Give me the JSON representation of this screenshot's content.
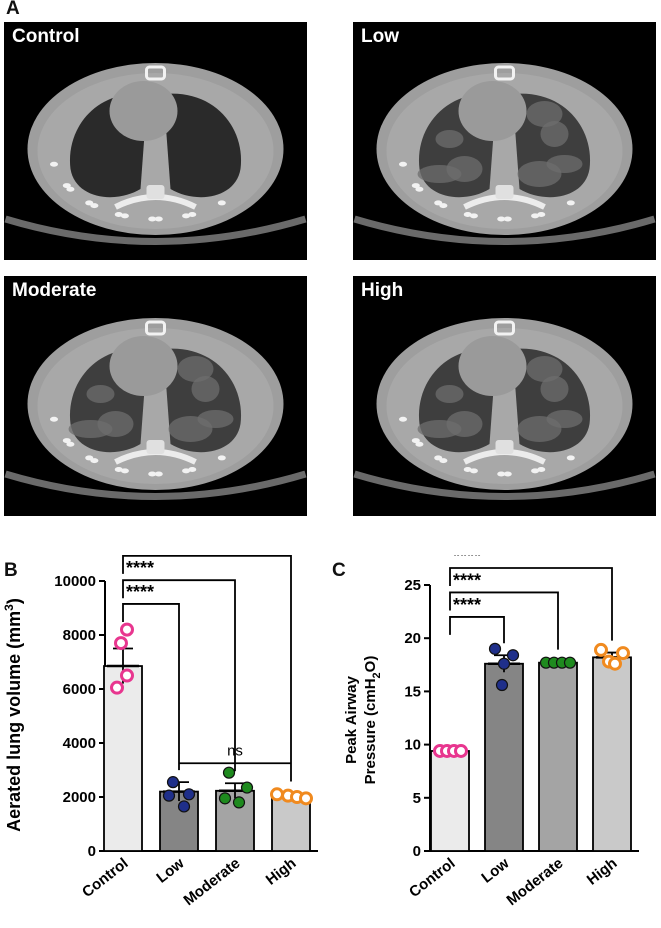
{
  "panels": {
    "a": {
      "letter": "A",
      "images": [
        {
          "label": "Control"
        },
        {
          "label": "Low"
        },
        {
          "label": "Moderate"
        },
        {
          "label": "High"
        }
      ]
    },
    "b": {
      "letter": "B"
    },
    "c": {
      "letter": "C"
    }
  },
  "colors": {
    "control": "#e8368f",
    "low": "#1f2f8a",
    "moderate": "#1e8a1e",
    "high": "#f08a1f",
    "bar_control": "#ebebeb",
    "bar_low": "#858585",
    "bar_moderate": "#a4a4a4",
    "bar_high": "#c9c9c9"
  },
  "chart_data": [
    {
      "id": "B",
      "type": "bar",
      "categories": [
        "Control",
        "Low",
        "Moderate",
        "High"
      ],
      "values": [
        6850,
        2200,
        2230,
        1980
      ],
      "errors": [
        650,
        350,
        280,
        150
      ],
      "points": [
        [
          8200,
          7700,
          6500,
          6050
        ],
        [
          2550,
          2100,
          2050,
          1650
        ],
        [
          2900,
          2350,
          1950,
          1800
        ],
        [
          2100,
          2050,
          2000,
          1950
        ]
      ],
      "point_open": [
        true,
        false,
        false,
        true
      ],
      "ylabel": "Aerated lung volume (mm",
      "ylabel_sup": "3",
      "ylabel_end": ")",
      "ylim": [
        0,
        10000
      ],
      "yticks": [
        0,
        2000,
        4000,
        6000,
        8000,
        10000
      ],
      "ytick_labels": [
        "0",
        "2000",
        "4000",
        "6000",
        "8000",
        "10000"
      ],
      "annotations": [
        {
          "from": 0,
          "to": 1,
          "y": 9150,
          "text": "****"
        },
        {
          "from": 0,
          "to": 2,
          "y": 10030,
          "text": "****"
        },
        {
          "from": 0,
          "to": 3,
          "y": 10930,
          "text": "****"
        },
        {
          "from": 1,
          "to": 3,
          "y": 3250,
          "text": "ns",
          "flat": true
        }
      ]
    },
    {
      "id": "C",
      "type": "bar",
      "categories": [
        "Control",
        "Low",
        "Moderate",
        "High"
      ],
      "values": [
        9.4,
        17.6,
        17.7,
        18.2
      ],
      "errors": [
        0.1,
        0.8,
        0.1,
        0.45
      ],
      "points": [
        [
          9.4,
          9.4,
          9.4,
          9.4
        ],
        [
          19.0,
          18.4,
          17.6,
          15.6
        ],
        [
          17.7,
          17.7,
          17.7,
          17.7
        ],
        [
          18.9,
          18.6,
          17.8,
          17.6
        ]
      ],
      "point_open": [
        true,
        false,
        false,
        true
      ],
      "ylabel_line1": "Peak Airway",
      "ylabel_line2": "Pressure (cmH",
      "ylabel_sub": "2",
      "ylabel_end": "O)",
      "ylim": [
        0,
        25
      ],
      "yticks": [
        0,
        5,
        10,
        15,
        20,
        25
      ],
      "ytick_labels": [
        "0",
        "5",
        "10",
        "15",
        "20",
        "25"
      ],
      "annotations": [
        {
          "from": 0,
          "to": 1,
          "y": 22.0,
          "text": "****"
        },
        {
          "from": 0,
          "to": 2,
          "y": 24.3,
          "text": "****"
        },
        {
          "from": 0,
          "to": 3,
          "y": 26.6,
          "text": "****"
        }
      ]
    }
  ]
}
